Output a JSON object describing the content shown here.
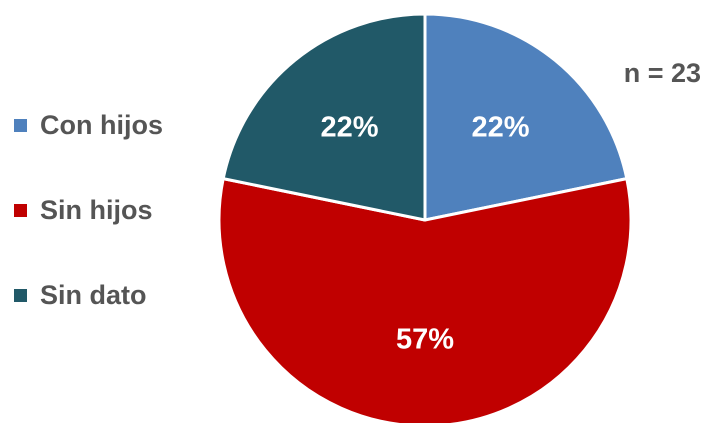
{
  "chart_data": {
    "type": "pie",
    "annotation": "n = 23",
    "slices": [
      {
        "label": "Con hijos",
        "value": 22,
        "value_label": "22%",
        "color": "#4F81BD"
      },
      {
        "label": "Sin hijos",
        "value": 57,
        "value_label": "57%",
        "color": "#C00000"
      },
      {
        "label": "Sin dato",
        "value": 22,
        "value_label": "22%",
        "color": "#215968"
      }
    ],
    "legend_position": "left",
    "start_angle_deg": 0,
    "direction": "clockwise"
  }
}
